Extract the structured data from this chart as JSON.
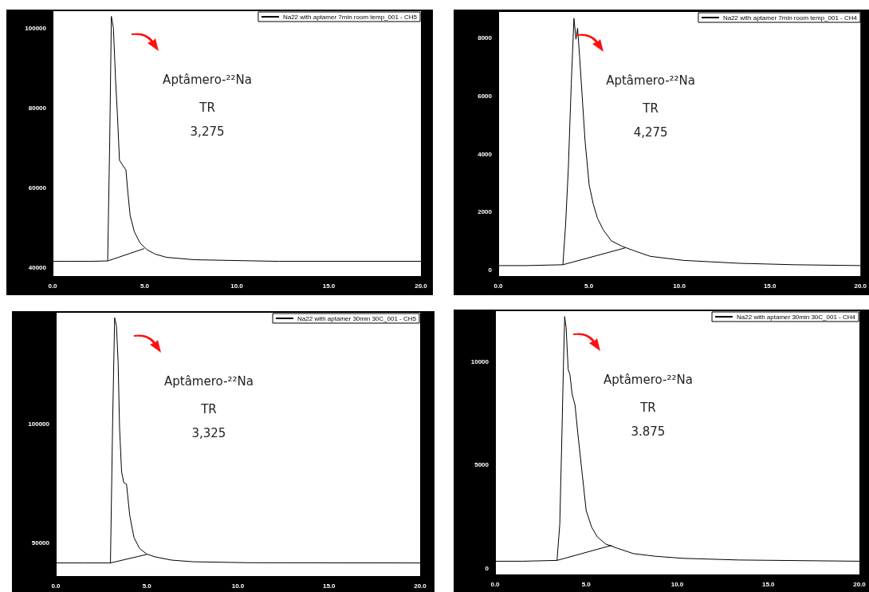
{
  "chart_data": [
    {
      "type": "line",
      "legend": "top right",
      "marker": "none",
      "grid": false,
      "annotations": [
        "Aptâmero-²²Na",
        "TR",
        "3,275"
      ],
      "xlim": [
        0,
        20
      ],
      "xticks": [
        {
          "value": 0,
          "label": "0.0"
        },
        {
          "value": 5,
          "label": "5.0"
        },
        {
          "value": 10,
          "label": "10.0"
        },
        {
          "value": 15,
          "label": "15.0"
        },
        {
          "value": 20,
          "label": "20.0"
        }
      ],
      "ylim": [
        37800,
        104400
      ],
      "yticks": [
        40000,
        60000,
        80000,
        100000
      ],
      "series": [
        {
          "name": "Na22 with aptamer 7min room temp_001 - CH5",
          "color": "#000000",
          "x": [
            0,
            1,
            2,
            2.99,
            3.1,
            3.19,
            3.3,
            3.42,
            3.53,
            3.63,
            3.83,
            3.98,
            4.09,
            4.21,
            4.44,
            4.75,
            5.13,
            5.58,
            6.19,
            7.71,
            12.27,
            20
          ],
          "values": [
            41500,
            41500,
            41500,
            41600,
            71800,
            103100,
            100200,
            87000,
            77300,
            66900,
            65500,
            64500,
            58600,
            53000,
            48900,
            46100,
            44400,
            43300,
            42500,
            41900,
            41500,
            41500
          ]
        },
        {
          "color": "#000000",
          "x": [
            2.99,
            4.97
          ],
          "values": [
            41600,
            44700
          ]
        }
      ]
    },
    {
      "type": "line",
      "legend": "top right",
      "marker": "none",
      "grid": false,
      "annotations": [
        "Aptâmero-²²Na",
        "TR",
        "4,275"
      ],
      "xlim": [
        0,
        20
      ],
      "xticks": [
        {
          "value": 0,
          "label": "0.0"
        },
        {
          "value": 5,
          "label": "5.0"
        },
        {
          "value": 10,
          "label": "10.0"
        },
        {
          "value": 15,
          "label": "15.0"
        },
        {
          "value": 20,
          "label": "20.0"
        }
      ],
      "ylim": [
        -200,
        8900
      ],
      "yticks": [
        0,
        2000,
        4000,
        6000,
        8000
      ],
      "series": [
        {
          "name": "Na22 with aptamer 7min room temp_001 - CH4",
          "color": "#000000",
          "x": [
            0,
            1.5,
            3.57,
            3.72,
            3.87,
            4.03,
            4.18,
            4.29,
            4.38,
            4.49,
            4.64,
            4.79,
            5.02,
            5.25,
            5.48,
            5.79,
            6.25,
            6.86,
            7.47,
            8.39,
            10.23,
            13.29,
            16.36,
            20
          ],
          "values": [
            160,
            160,
            190,
            1590,
            3520,
            6410,
            8680,
            7960,
            8340,
            7380,
            5930,
            4480,
            2940,
            2270,
            1790,
            1400,
            1010,
            820,
            680,
            480,
            340,
            240,
            190,
            160
          ]
        },
        {
          "color": "#000000",
          "x": [
            3.57,
            7.01
          ],
          "values": [
            190,
            770
          ]
        }
      ]
    },
    {
      "type": "line",
      "legend": "top right",
      "marker": "none",
      "grid": false,
      "annotations": [
        "Aptâmero-²²Na",
        "TR",
        "3,325"
      ],
      "xlim": [
        0,
        20
      ],
      "xticks": [
        {
          "value": 0,
          "label": "0.0"
        },
        {
          "value": 5,
          "label": "5.0"
        },
        {
          "value": 10,
          "label": "10.0"
        },
        {
          "value": 15,
          "label": "15.0"
        },
        {
          "value": 20,
          "label": "20.0"
        }
      ],
      "ylim": [
        36100,
        146800
      ],
      "yticks": [
        50000,
        100000
      ],
      "series": [
        {
          "name": "Na22 with aptamer 30min 30C_001 - CH5",
          "color": "#000000",
          "x": [
            0,
            1.5,
            3.0,
            3.12,
            3.23,
            3.33,
            3.42,
            3.5,
            3.61,
            3.73,
            3.88,
            4.06,
            4.29,
            4.6,
            4.98,
            5.43,
            6.35,
            7.56,
            10.6,
            20
          ],
          "values": [
            41600,
            41600,
            41600,
            100800,
            144700,
            141200,
            126200,
            98500,
            80000,
            75400,
            74800,
            61500,
            52300,
            47700,
            45400,
            44200,
            42800,
            42100,
            41700,
            41600
          ]
        },
        {
          "color": "#000000",
          "x": [
            3.0,
            5.0
          ],
          "values": [
            41600,
            45200
          ]
        }
      ]
    },
    {
      "type": "line",
      "legend": "top right",
      "marker": "none",
      "grid": false,
      "annotations": [
        "Aptâmero-²²Na",
        "TR",
        "3.875"
      ],
      "xlim": [
        0,
        20
      ],
      "xticks": [
        {
          "value": 0,
          "label": "0.0"
        },
        {
          "value": 5,
          "label": "5.0"
        },
        {
          "value": 10,
          "label": "10.0"
        },
        {
          "value": 15,
          "label": "15.0"
        },
        {
          "value": 20,
          "label": "20.0"
        }
      ],
      "ylim": [
        -300,
        12450
      ],
      "yticks": [
        0,
        5000,
        10000
      ],
      "series": [
        {
          "name": "Na22 with aptamer 30min 30C_001 - CH4",
          "color": "#000000",
          "x": [
            0,
            1.5,
            3.4,
            3.55,
            3.66,
            3.75,
            3.82,
            3.9,
            4.01,
            4.11,
            4.23,
            4.39,
            4.54,
            4.77,
            5.0,
            5.3,
            5.61,
            6.06,
            6.67,
            7.59,
            8.8,
            10.33,
            13.37,
            20
          ],
          "values": [
            340,
            340,
            380,
            2120,
            6150,
            9770,
            12190,
            11650,
            9640,
            9370,
            8430,
            7890,
            6550,
            4670,
            2790,
            1990,
            1520,
            1180,
            980,
            710,
            580,
            480,
            400,
            340
          ]
        },
        {
          "color": "#000000",
          "x": [
            3.4,
            6.4
          ],
          "values": [
            380,
            1110
          ]
        }
      ]
    }
  ]
}
